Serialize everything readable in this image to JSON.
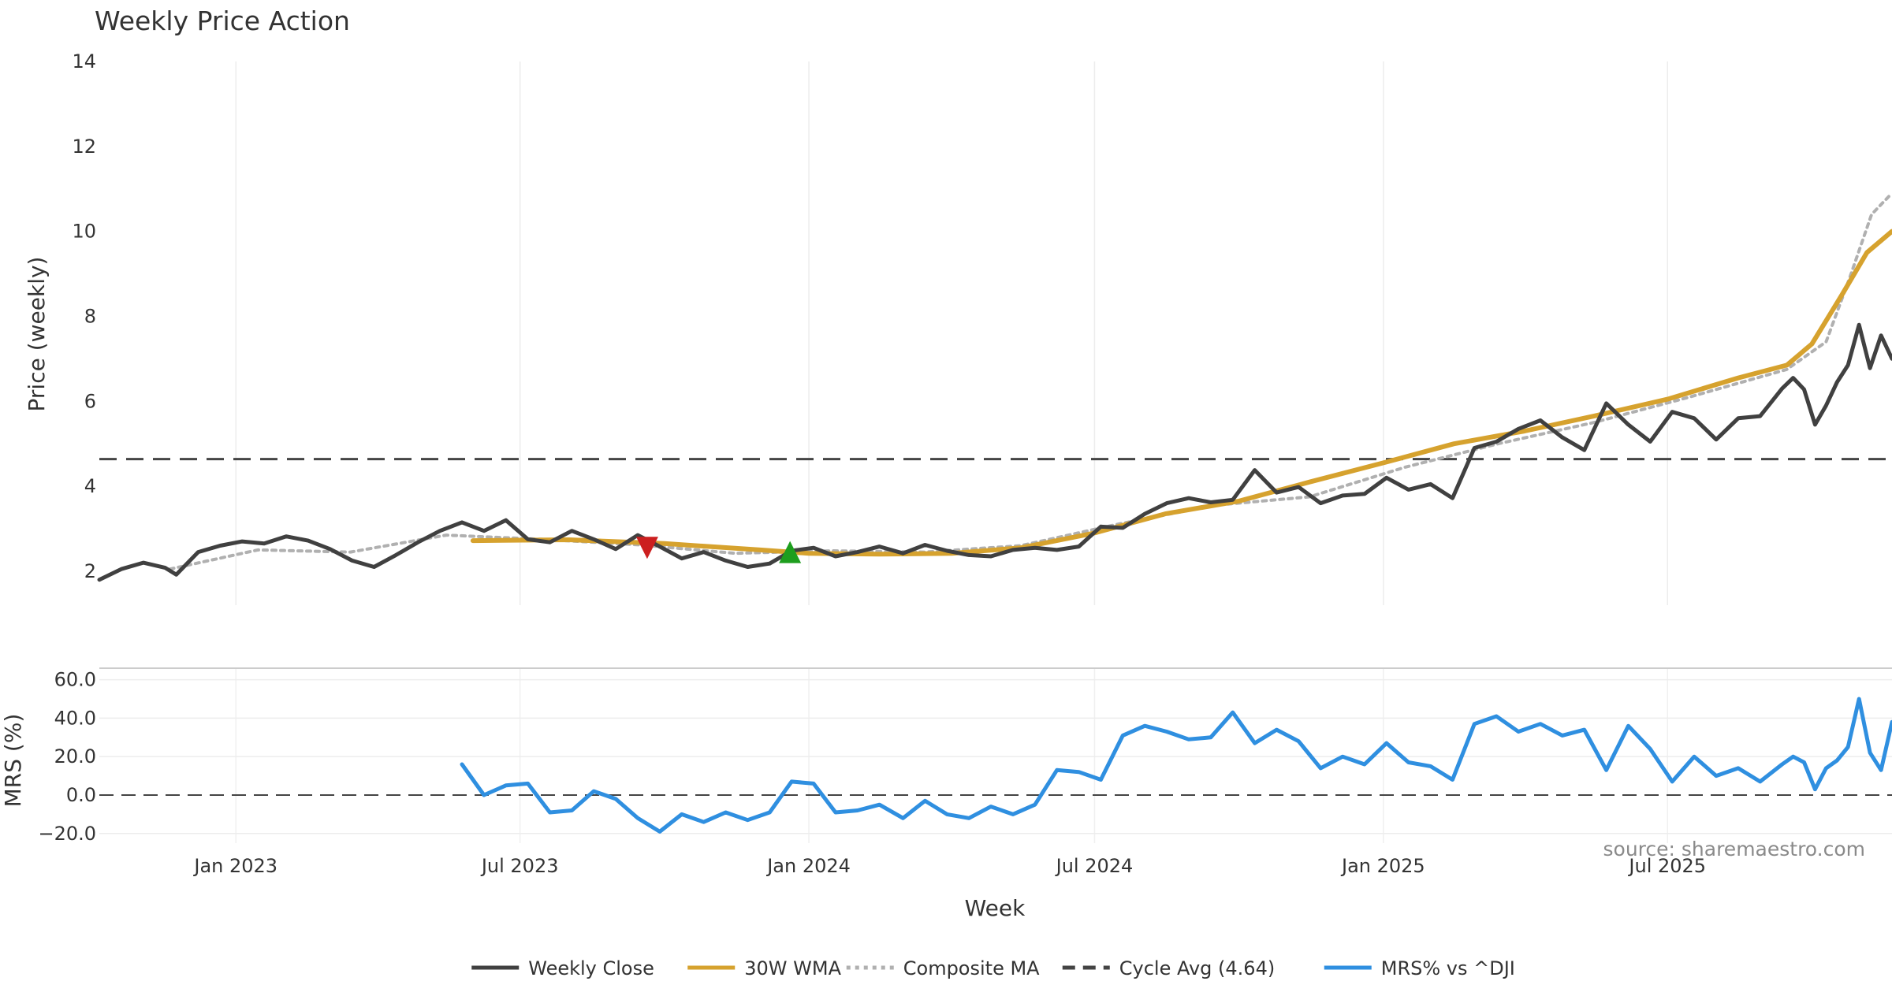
{
  "chart_data": {
    "title": "Weekly Price Action",
    "type": "line",
    "x_domain": [
      "2022-10-06",
      "2025-11-21"
    ],
    "x_ticks": [
      {
        "date": "2023-01-01",
        "label": "Jan 2023"
      },
      {
        "date": "2023-07-01",
        "label": "Jul 2023"
      },
      {
        "date": "2024-01-01",
        "label": "Jan 2024"
      },
      {
        "date": "2024-07-01",
        "label": "Jul 2024"
      },
      {
        "date": "2025-01-01",
        "label": "Jan 2025"
      },
      {
        "date": "2025-07-01",
        "label": "Jul 2025"
      }
    ],
    "xlabel": "Week",
    "price_panel": {
      "ylabel": "Price (weekly)",
      "ylim": [
        1.2,
        14.0
      ],
      "yticks": [
        2,
        4,
        6,
        8,
        10,
        12,
        14
      ],
      "cycle_avg": 4.64,
      "series": [
        {
          "name": "Weekly Close",
          "color": "#404040",
          "style": "solid",
          "points": [
            [
              "2022-10-06",
              1.8
            ],
            [
              "2022-10-20",
              2.05
            ],
            [
              "2022-11-03",
              2.2
            ],
            [
              "2022-11-17",
              2.08
            ],
            [
              "2022-11-24",
              1.92
            ],
            [
              "2022-12-08",
              2.45
            ],
            [
              "2022-12-22",
              2.6
            ],
            [
              "2023-01-05",
              2.7
            ],
            [
              "2023-01-19",
              2.65
            ],
            [
              "2023-02-02",
              2.82
            ],
            [
              "2023-02-16",
              2.72
            ],
            [
              "2023-03-02",
              2.52
            ],
            [
              "2023-03-16",
              2.25
            ],
            [
              "2023-03-30",
              2.1
            ],
            [
              "2023-04-13",
              2.38
            ],
            [
              "2023-04-27",
              2.68
            ],
            [
              "2023-05-11",
              2.95
            ],
            [
              "2023-05-25",
              3.15
            ],
            [
              "2023-06-08",
              2.95
            ],
            [
              "2023-06-22",
              3.2
            ],
            [
              "2023-07-06",
              2.75
            ],
            [
              "2023-07-20",
              2.68
            ],
            [
              "2023-08-03",
              2.95
            ],
            [
              "2023-08-17",
              2.75
            ],
            [
              "2023-08-31",
              2.52
            ],
            [
              "2023-09-14",
              2.85
            ],
            [
              "2023-09-28",
              2.58
            ],
            [
              "2023-10-12",
              2.3
            ],
            [
              "2023-10-26",
              2.45
            ],
            [
              "2023-11-09",
              2.25
            ],
            [
              "2023-11-23",
              2.1
            ],
            [
              "2023-12-07",
              2.18
            ],
            [
              "2023-12-21",
              2.48
            ],
            [
              "2024-01-04",
              2.55
            ],
            [
              "2024-01-18",
              2.35
            ],
            [
              "2024-02-01",
              2.45
            ],
            [
              "2024-02-15",
              2.58
            ],
            [
              "2024-03-01",
              2.42
            ],
            [
              "2024-03-15",
              2.62
            ],
            [
              "2024-03-29",
              2.48
            ],
            [
              "2024-04-12",
              2.38
            ],
            [
              "2024-04-26",
              2.35
            ],
            [
              "2024-05-10",
              2.5
            ],
            [
              "2024-05-24",
              2.55
            ],
            [
              "2024-06-07",
              2.5
            ],
            [
              "2024-06-21",
              2.58
            ],
            [
              "2024-07-05",
              3.05
            ],
            [
              "2024-07-19",
              3.02
            ],
            [
              "2024-08-02",
              3.35
            ],
            [
              "2024-08-16",
              3.6
            ],
            [
              "2024-08-30",
              3.72
            ],
            [
              "2024-09-13",
              3.62
            ],
            [
              "2024-09-27",
              3.68
            ],
            [
              "2024-10-11",
              4.38
            ],
            [
              "2024-10-25",
              3.85
            ],
            [
              "2024-11-08",
              3.98
            ],
            [
              "2024-11-22",
              3.6
            ],
            [
              "2024-12-06",
              3.78
            ],
            [
              "2024-12-20",
              3.82
            ],
            [
              "2025-01-03",
              4.2
            ],
            [
              "2025-01-17",
              3.92
            ],
            [
              "2025-01-31",
              4.05
            ],
            [
              "2025-02-14",
              3.72
            ],
            [
              "2025-02-28",
              4.9
            ],
            [
              "2025-03-14",
              5.05
            ],
            [
              "2025-03-28",
              5.35
            ],
            [
              "2025-04-11",
              5.55
            ],
            [
              "2025-04-25",
              5.15
            ],
            [
              "2025-05-09",
              4.85
            ],
            [
              "2025-05-23",
              5.95
            ],
            [
              "2025-06-06",
              5.45
            ],
            [
              "2025-06-20",
              5.05
            ],
            [
              "2025-07-04",
              5.75
            ],
            [
              "2025-07-18",
              5.6
            ],
            [
              "2025-08-01",
              5.1
            ],
            [
              "2025-08-15",
              5.6
            ],
            [
              "2025-08-29",
              5.65
            ],
            [
              "2025-09-12",
              6.3
            ],
            [
              "2025-09-19",
              6.55
            ],
            [
              "2025-09-26",
              6.28
            ],
            [
              "2025-10-03",
              5.45
            ],
            [
              "2025-10-10",
              5.9
            ],
            [
              "2025-10-17",
              6.45
            ],
            [
              "2025-10-24",
              6.85
            ],
            [
              "2025-10-31",
              7.8
            ],
            [
              "2025-11-07",
              6.78
            ],
            [
              "2025-11-14",
              7.55
            ],
            [
              "2025-11-21",
              7.0
            ]
          ]
        },
        {
          "name": "30W WMA",
          "color": "#d6a22e",
          "style": "solid",
          "points": [
            [
              "2023-06-01",
              2.72
            ],
            [
              "2023-08-01",
              2.74
            ],
            [
              "2023-10-01",
              2.65
            ],
            [
              "2023-12-01",
              2.5
            ],
            [
              "2024-01-01",
              2.42
            ],
            [
              "2024-02-15",
              2.4
            ],
            [
              "2024-04-01",
              2.42
            ],
            [
              "2024-05-15",
              2.55
            ],
            [
              "2024-07-01",
              2.9
            ],
            [
              "2024-08-15",
              3.35
            ],
            [
              "2024-10-01",
              3.65
            ],
            [
              "2024-11-15",
              4.1
            ],
            [
              "2025-01-01",
              4.55
            ],
            [
              "2025-02-15",
              5.0
            ],
            [
              "2025-04-01",
              5.3
            ],
            [
              "2025-05-15",
              5.65
            ],
            [
              "2025-07-01",
              6.05
            ],
            [
              "2025-08-15",
              6.55
            ],
            [
              "2025-09-15",
              6.85
            ],
            [
              "2025-10-01",
              7.35
            ],
            [
              "2025-10-20",
              8.5
            ],
            [
              "2025-11-05",
              9.5
            ],
            [
              "2025-11-21",
              10.0
            ]
          ]
        },
        {
          "name": "Composite MA",
          "color": "#b0b0b0",
          "style": "dotted",
          "points": [
            [
              "2022-11-20",
              2.05
            ],
            [
              "2023-01-15",
              2.5
            ],
            [
              "2023-03-15",
              2.45
            ],
            [
              "2023-05-15",
              2.85
            ],
            [
              "2023-07-15",
              2.75
            ],
            [
              "2023-09-15",
              2.62
            ],
            [
              "2023-11-15",
              2.42
            ],
            [
              "2024-01-15",
              2.48
            ],
            [
              "2024-03-15",
              2.45
            ],
            [
              "2024-05-15",
              2.6
            ],
            [
              "2024-07-15",
              3.1
            ],
            [
              "2024-09-15",
              3.55
            ],
            [
              "2024-11-15",
              3.75
            ],
            [
              "2025-01-15",
              4.45
            ],
            [
              "2025-03-15",
              5.0
            ],
            [
              "2025-05-15",
              5.5
            ],
            [
              "2025-07-15",
              6.1
            ],
            [
              "2025-09-15",
              6.75
            ],
            [
              "2025-10-10",
              7.4
            ],
            [
              "2025-10-25",
              8.9
            ],
            [
              "2025-11-08",
              10.4
            ],
            [
              "2025-11-21",
              10.9
            ]
          ]
        }
      ],
      "markers": [
        {
          "type": "sell",
          "date": "2023-09-20",
          "value": 2.55,
          "color": "#cc1f1f"
        },
        {
          "type": "buy",
          "date": "2023-12-20",
          "value": 2.45,
          "color": "#1e9e1e"
        }
      ]
    },
    "mrs_panel": {
      "ylabel": "MRS (%)",
      "ylim": [
        -25.0,
        66.0
      ],
      "yticks": [
        -20.0,
        0.0,
        20.0,
        40.0,
        60.0
      ],
      "ytick_labels": [
        "−20.0",
        "0.0",
        "20.0",
        "40.0",
        "60.0"
      ],
      "series": [
        {
          "name": "MRS% vs ^DJI",
          "color": "#2f8fe0",
          "style": "solid",
          "points": [
            [
              "2023-05-25",
              16
            ],
            [
              "2023-06-08",
              0
            ],
            [
              "2023-06-22",
              5
            ],
            [
              "2023-07-06",
              6
            ],
            [
              "2023-07-20",
              -9
            ],
            [
              "2023-08-03",
              -8
            ],
            [
              "2023-08-17",
              2
            ],
            [
              "2023-08-31",
              -2
            ],
            [
              "2023-09-14",
              -12
            ],
            [
              "2023-09-28",
              -19
            ],
            [
              "2023-10-12",
              -10
            ],
            [
              "2023-10-26",
              -14
            ],
            [
              "2023-11-09",
              -9
            ],
            [
              "2023-11-23",
              -13
            ],
            [
              "2023-12-07",
              -9
            ],
            [
              "2023-12-21",
              7
            ],
            [
              "2024-01-04",
              6
            ],
            [
              "2024-01-18",
              -9
            ],
            [
              "2024-02-01",
              -8
            ],
            [
              "2024-02-15",
              -5
            ],
            [
              "2024-03-01",
              -12
            ],
            [
              "2024-03-15",
              -3
            ],
            [
              "2024-03-29",
              -10
            ],
            [
              "2024-04-12",
              -12
            ],
            [
              "2024-04-26",
              -6
            ],
            [
              "2024-05-10",
              -10
            ],
            [
              "2024-05-24",
              -5
            ],
            [
              "2024-06-07",
              13
            ],
            [
              "2024-06-21",
              12
            ],
            [
              "2024-07-05",
              8
            ],
            [
              "2024-07-19",
              31
            ],
            [
              "2024-08-02",
              36
            ],
            [
              "2024-08-16",
              33
            ],
            [
              "2024-08-30",
              29
            ],
            [
              "2024-09-13",
              30
            ],
            [
              "2024-09-27",
              43
            ],
            [
              "2024-10-11",
              27
            ],
            [
              "2024-10-25",
              34
            ],
            [
              "2024-11-08",
              28
            ],
            [
              "2024-11-22",
              14
            ],
            [
              "2024-12-06",
              20
            ],
            [
              "2024-12-20",
              16
            ],
            [
              "2025-01-03",
              27
            ],
            [
              "2025-01-17",
              17
            ],
            [
              "2025-01-31",
              15
            ],
            [
              "2025-02-14",
              8
            ],
            [
              "2025-02-28",
              37
            ],
            [
              "2025-03-14",
              41
            ],
            [
              "2025-03-28",
              33
            ],
            [
              "2025-04-11",
              37
            ],
            [
              "2025-04-25",
              31
            ],
            [
              "2025-05-09",
              34
            ],
            [
              "2025-05-23",
              13
            ],
            [
              "2025-06-06",
              36
            ],
            [
              "2025-06-20",
              24
            ],
            [
              "2025-07-04",
              7
            ],
            [
              "2025-07-18",
              20
            ],
            [
              "2025-08-01",
              10
            ],
            [
              "2025-08-15",
              14
            ],
            [
              "2025-08-29",
              7
            ],
            [
              "2025-09-12",
              16
            ],
            [
              "2025-09-19",
              20
            ],
            [
              "2025-09-26",
              17
            ],
            [
              "2025-10-03",
              3
            ],
            [
              "2025-10-10",
              14
            ],
            [
              "2025-10-17",
              18
            ],
            [
              "2025-10-24",
              25
            ],
            [
              "2025-10-31",
              50
            ],
            [
              "2025-11-07",
              22
            ],
            [
              "2025-11-14",
              13
            ],
            [
              "2025-11-21",
              38
            ]
          ]
        }
      ]
    },
    "legend": {
      "placement": "bottom-center",
      "items": [
        {
          "label": "Weekly Close",
          "color": "#404040",
          "style": "solid"
        },
        {
          "label": "30W WMA",
          "color": "#d6a22e",
          "style": "solid"
        },
        {
          "label": "Composite MA",
          "color": "#b0b0b0",
          "style": "dotted"
        },
        {
          "label": "Cycle Avg (4.64)",
          "color": "#444444",
          "style": "dashed"
        },
        {
          "label": "MRS% vs ^DJI",
          "color": "#2f8fe0",
          "style": "solid"
        }
      ]
    },
    "source_note": "source: sharemaestro.com"
  }
}
